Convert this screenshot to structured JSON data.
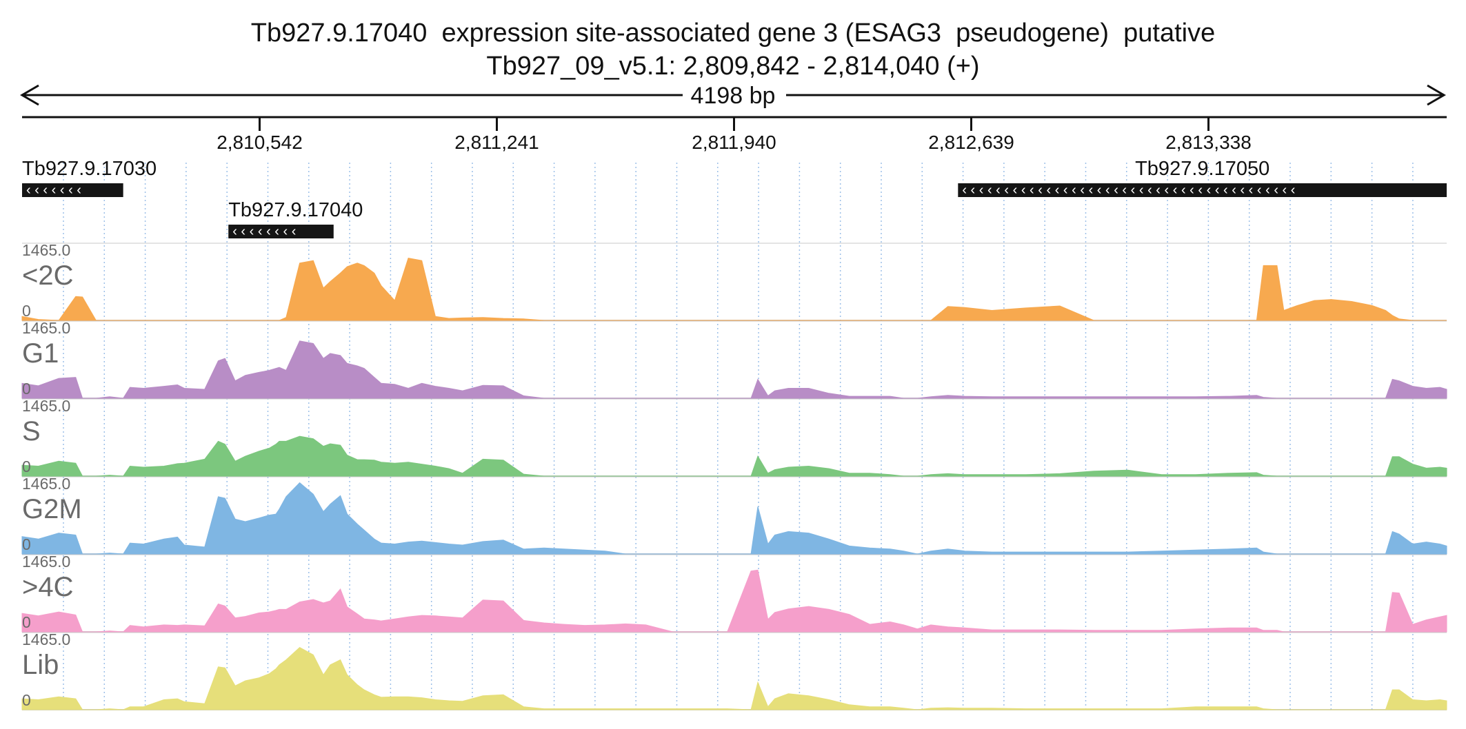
{
  "chart_data": {
    "type": "area",
    "title": "Tb927.9.17040  expression site-associated gene 3 (ESAG3  pseudogene)  putative",
    "subtitle": "Tb927_09_v5.1: 2,809,842 - 2,814,040 (+)",
    "span_label": "4198 bp",
    "xlim": [
      2809842,
      2814040
    ],
    "x_ticks": [
      2810542,
      2811241,
      2811940,
      2812639,
      2813338
    ],
    "x_tick_labels": [
      "2,810,542",
      "2,811,241",
      "2,811,940",
      "2,812,639",
      "2,813,338"
    ],
    "genes": [
      {
        "name": "Tb927.9.17030",
        "start": 2809842,
        "end": 2810140,
        "strand": "<",
        "row": 0
      },
      {
        "name": "Tb927.9.17040",
        "start": 2810450,
        "end": 2810760,
        "strand": "<",
        "row": 1
      },
      {
        "name": "Tb927.9.17050",
        "start": 2812600,
        "end": 2814040,
        "strand": "<",
        "row": 0
      }
    ],
    "ylim": [
      0,
      1465.0
    ],
    "ymax_label": "1465.0",
    "ymin_label": "0",
    "x": [
      2809842,
      2809890,
      2809950,
      2810000,
      2810020,
      2810060,
      2810100,
      2810140,
      2810160,
      2810200,
      2810260,
      2810300,
      2810320,
      2810380,
      2810420,
      2810440,
      2810470,
      2810500,
      2810540,
      2810570,
      2810590,
      2810600,
      2810620,
      2810660,
      2810700,
      2810730,
      2810750,
      2810780,
      2810800,
      2810830,
      2810850,
      2810880,
      2810900,
      2810940,
      2810980,
      2811020,
      2811060,
      2811100,
      2811140,
      2811200,
      2811260,
      2811320,
      2811380,
      2811440,
      2811500,
      2811560,
      2811620,
      2811680,
      2811760,
      2811840,
      2811920,
      2811990,
      2812010,
      2812040,
      2812060,
      2812100,
      2812160,
      2812220,
      2812280,
      2812340,
      2812400,
      2812440,
      2812480,
      2812520,
      2812570,
      2812620,
      2812700,
      2812800,
      2812900,
      2813000,
      2813100,
      2813200,
      2813300,
      2813400,
      2813480,
      2813500,
      2813540,
      2813560,
      2813600,
      2813650,
      2813700,
      2813760,
      2813820,
      2813860,
      2813880,
      2813900,
      2813940,
      2813980,
      2814020,
      2814040
    ],
    "series": [
      {
        "name": "<2C",
        "color": "#f7a94f",
        "values": [
          80,
          20,
          0,
          480,
          470,
          0,
          0,
          0,
          0,
          0,
          0,
          0,
          0,
          0,
          0,
          0,
          0,
          0,
          0,
          0,
          0,
          0,
          60,
          1150,
          1200,
          650,
          780,
          950,
          1080,
          1150,
          1100,
          950,
          700,
          400,
          1250,
          1200,
          80,
          40,
          50,
          60,
          40,
          30,
          0,
          0,
          0,
          0,
          0,
          0,
          0,
          0,
          0,
          0,
          0,
          0,
          0,
          0,
          0,
          0,
          0,
          0,
          0,
          0,
          0,
          0,
          280,
          260,
          200,
          250,
          290,
          0,
          0,
          0,
          0,
          0,
          0,
          1100,
          1100,
          200,
          300,
          400,
          420,
          380,
          300,
          200,
          100,
          30,
          0,
          0,
          0,
          0
        ]
      },
      {
        "name": "G1",
        "color": "#b88dc6",
        "values": [
          300,
          250,
          400,
          420,
          0,
          0,
          30,
          0,
          220,
          200,
          240,
          270,
          200,
          180,
          750,
          800,
          350,
          460,
          520,
          560,
          600,
          620,
          560,
          1150,
          1100,
          800,
          900,
          860,
          700,
          650,
          600,
          420,
          300,
          280,
          200,
          300,
          240,
          200,
          150,
          260,
          250,
          50,
          0,
          0,
          0,
          0,
          0,
          0,
          0,
          0,
          0,
          0,
          380,
          50,
          150,
          200,
          200,
          100,
          40,
          40,
          40,
          0,
          0,
          30,
          60,
          40,
          30,
          30,
          30,
          30,
          30,
          30,
          30,
          40,
          60,
          20,
          0,
          0,
          0,
          0,
          0,
          0,
          0,
          0,
          380,
          350,
          240,
          200,
          220,
          180
        ]
      },
      {
        "name": "S",
        "color": "#7cc77e",
        "values": [
          220,
          200,
          300,
          260,
          0,
          0,
          20,
          0,
          200,
          180,
          200,
          250,
          260,
          340,
          700,
          640,
          300,
          400,
          500,
          560,
          640,
          700,
          700,
          800,
          750,
          600,
          650,
          620,
          420,
          330,
          330,
          320,
          280,
          260,
          280,
          240,
          200,
          150,
          60,
          340,
          320,
          40,
          0,
          0,
          0,
          0,
          0,
          0,
          0,
          0,
          0,
          0,
          400,
          60,
          130,
          180,
          200,
          150,
          60,
          60,
          30,
          0,
          0,
          30,
          50,
          30,
          30,
          30,
          50,
          100,
          120,
          30,
          30,
          60,
          70,
          20,
          0,
          0,
          0,
          0,
          0,
          0,
          0,
          0,
          390,
          390,
          240,
          160,
          180,
          160
        ]
      },
      {
        "name": "G2M",
        "color": "#7fb6e3",
        "values": [
          350,
          300,
          420,
          380,
          0,
          0,
          20,
          0,
          220,
          200,
          300,
          340,
          180,
          140,
          1150,
          1120,
          700,
          650,
          720,
          780,
          800,
          900,
          1150,
          1430,
          1200,
          850,
          1000,
          1170,
          800,
          600,
          480,
          300,
          220,
          200,
          240,
          260,
          230,
          200,
          180,
          250,
          280,
          100,
          120,
          100,
          80,
          60,
          0,
          0,
          0,
          0,
          0,
          0,
          950,
          200,
          380,
          450,
          420,
          300,
          160,
          120,
          100,
          60,
          0,
          60,
          100,
          60,
          40,
          40,
          40,
          40,
          40,
          60,
          80,
          100,
          120,
          40,
          0,
          0,
          0,
          0,
          0,
          0,
          0,
          0,
          450,
          400,
          200,
          240,
          200,
          160
        ]
      },
      {
        "name": ">4C",
        "color": "#f59fcb",
        "values": [
          370,
          320,
          400,
          340,
          0,
          0,
          20,
          0,
          130,
          100,
          140,
          130,
          140,
          120,
          560,
          520,
          280,
          310,
          380,
          400,
          430,
          450,
          450,
          600,
          650,
          580,
          620,
          860,
          500,
          360,
          260,
          240,
          220,
          260,
          300,
          330,
          320,
          300,
          280,
          640,
          620,
          230,
          180,
          150,
          130,
          140,
          160,
          140,
          0,
          0,
          0,
          1220,
          1240,
          250,
          390,
          460,
          510,
          450,
          350,
          150,
          200,
          140,
          60,
          140,
          100,
          80,
          40,
          40,
          40,
          30,
          30,
          30,
          60,
          80,
          80,
          30,
          30,
          0,
          0,
          0,
          0,
          0,
          0,
          0,
          790,
          780,
          150,
          240,
          300,
          330
        ]
      },
      {
        "name": "Lib",
        "color": "#e6df7a",
        "values": [
          220,
          200,
          260,
          220,
          0,
          0,
          20,
          0,
          60,
          60,
          200,
          220,
          160,
          120,
          860,
          840,
          480,
          580,
          640,
          720,
          820,
          900,
          1000,
          1250,
          1100,
          700,
          900,
          1000,
          700,
          500,
          400,
          300,
          250,
          260,
          260,
          240,
          200,
          180,
          170,
          280,
          300,
          60,
          20,
          20,
          20,
          20,
          20,
          20,
          20,
          20,
          20,
          0,
          550,
          60,
          220,
          320,
          280,
          200,
          100,
          60,
          60,
          30,
          0,
          30,
          40,
          30,
          30,
          20,
          20,
          20,
          20,
          20,
          60,
          60,
          60,
          20,
          0,
          0,
          0,
          0,
          0,
          0,
          0,
          0,
          400,
          400,
          200,
          180,
          200,
          180
        ]
      }
    ]
  }
}
